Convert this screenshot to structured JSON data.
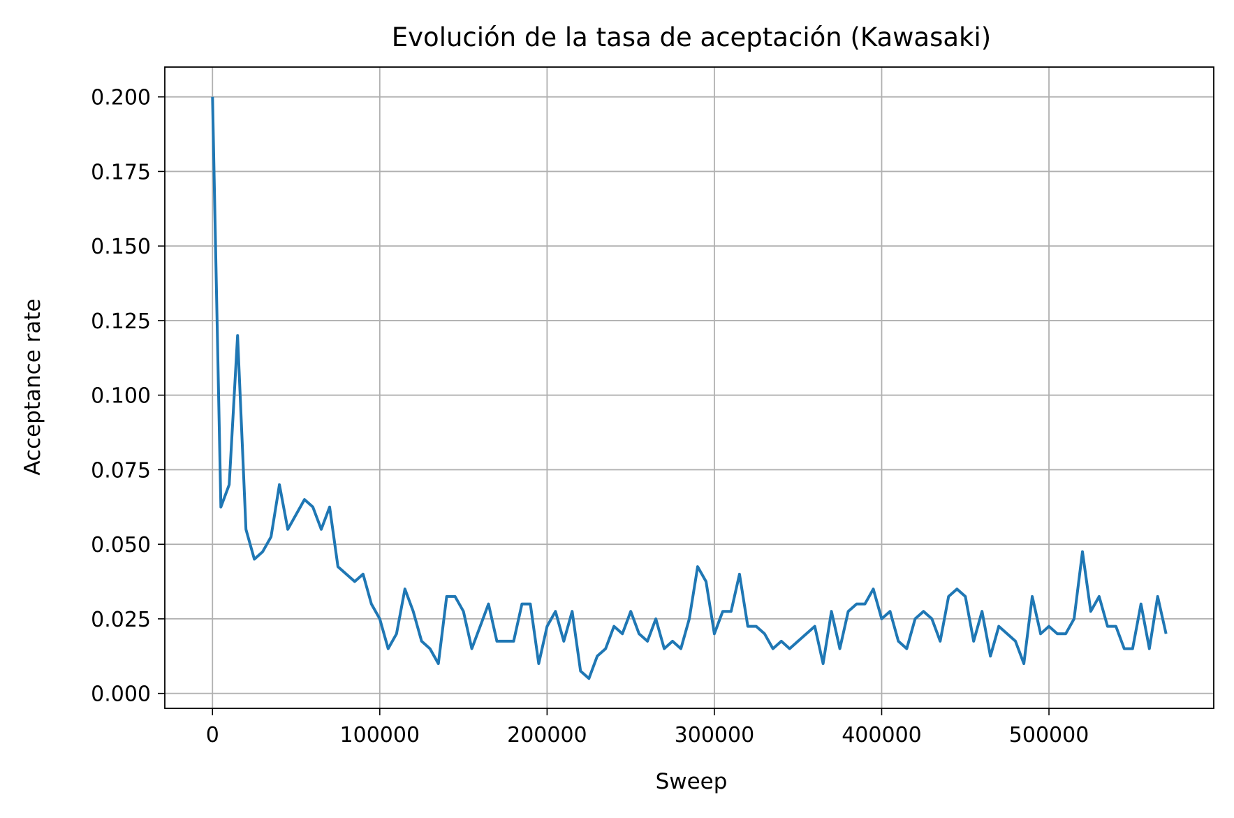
{
  "chart_data": {
    "type": "line",
    "title": "Evolución de la tasa de aceptación (Kawasaki)",
    "xlabel": "Sweep",
    "ylabel": "Acceptance rate",
    "xlim": [
      -28500,
      598500
    ],
    "ylim": [
      -0.005,
      0.21
    ],
    "xticks": [
      0,
      100000,
      200000,
      300000,
      400000,
      500000
    ],
    "xtick_labels": [
      "0",
      "100000",
      "200000",
      "300000",
      "400000",
      "500000"
    ],
    "yticks": [
      0.0,
      0.025,
      0.05,
      0.075,
      0.1,
      0.125,
      0.15,
      0.175,
      0.2
    ],
    "ytick_labels": [
      "0.000",
      "0.025",
      "0.050",
      "0.075",
      "0.100",
      "0.125",
      "0.150",
      "0.175",
      "0.200"
    ],
    "grid": true,
    "line_color": "#1f77b4",
    "series": [
      {
        "x": [
          0,
          5000,
          10000,
          15000,
          20000,
          25000,
          30000,
          35000,
          40000,
          45000,
          50000,
          55000,
          60000,
          65000,
          70000,
          75000,
          80000,
          85000,
          90000,
          95000,
          100000,
          105000,
          110000,
          115000,
          120000,
          125000,
          130000,
          135000,
          140000,
          145000,
          150000,
          155000,
          160000,
          165000,
          170000,
          175000,
          180000,
          185000,
          190000,
          195000,
          200000,
          205000,
          210000,
          215000,
          220000,
          225000,
          230000,
          235000,
          240000,
          245000,
          250000,
          255000,
          260000,
          265000,
          270000,
          275000,
          280000,
          285000,
          290000,
          295000,
          300000,
          305000,
          310000,
          315000,
          320000,
          325000,
          330000,
          335000,
          340000,
          345000,
          350000,
          355000,
          360000,
          365000,
          370000,
          375000,
          380000,
          385000,
          390000,
          395000,
          400000,
          405000,
          410000,
          415000,
          420000,
          425000,
          430000,
          435000,
          440000,
          445000,
          450000,
          455000,
          460000,
          465000,
          470000,
          475000,
          480000,
          485000,
          490000,
          495000,
          500000,
          505000,
          510000,
          515000,
          520000,
          525000,
          530000,
          535000,
          540000,
          545000,
          550000,
          555000,
          560000,
          565000,
          570000
        ],
        "values": [
          0.2,
          0.0625,
          0.07,
          0.12,
          0.055,
          0.045,
          0.0475,
          0.0525,
          0.07,
          0.055,
          0.06,
          0.065,
          0.0625,
          0.055,
          0.0625,
          0.0425,
          0.04,
          0.0375,
          0.04,
          0.03,
          0.025,
          0.015,
          0.02,
          0.035,
          0.0275,
          0.0175,
          0.015,
          0.01,
          0.0325,
          0.0325,
          0.0275,
          0.015,
          0.0225,
          0.03,
          0.0175,
          0.0175,
          0.0175,
          0.03,
          0.03,
          0.01,
          0.0225,
          0.0275,
          0.0175,
          0.0275,
          0.0075,
          0.005,
          0.0125,
          0.015,
          0.0225,
          0.02,
          0.0275,
          0.02,
          0.0175,
          0.025,
          0.015,
          0.0175,
          0.015,
          0.025,
          0.0425,
          0.0375,
          0.02,
          0.0275,
          0.0275,
          0.04,
          0.0225,
          0.0225,
          0.02,
          0.015,
          0.0175,
          0.015,
          0.0175,
          0.02,
          0.0225,
          0.01,
          0.0275,
          0.015,
          0.0275,
          0.03,
          0.03,
          0.035,
          0.025,
          0.0275,
          0.0175,
          0.015,
          0.025,
          0.0275,
          0.025,
          0.0175,
          0.0325,
          0.035,
          0.0325,
          0.0175,
          0.0275,
          0.0125,
          0.0225,
          0.02,
          0.0175,
          0.01,
          0.0325,
          0.02,
          0.0225,
          0.02,
          0.02,
          0.025,
          0.0475,
          0.0275,
          0.0325,
          0.0225,
          0.0225,
          0.015,
          0.015,
          0.03,
          0.015,
          0.0325,
          0.02
        ]
      }
    ]
  }
}
